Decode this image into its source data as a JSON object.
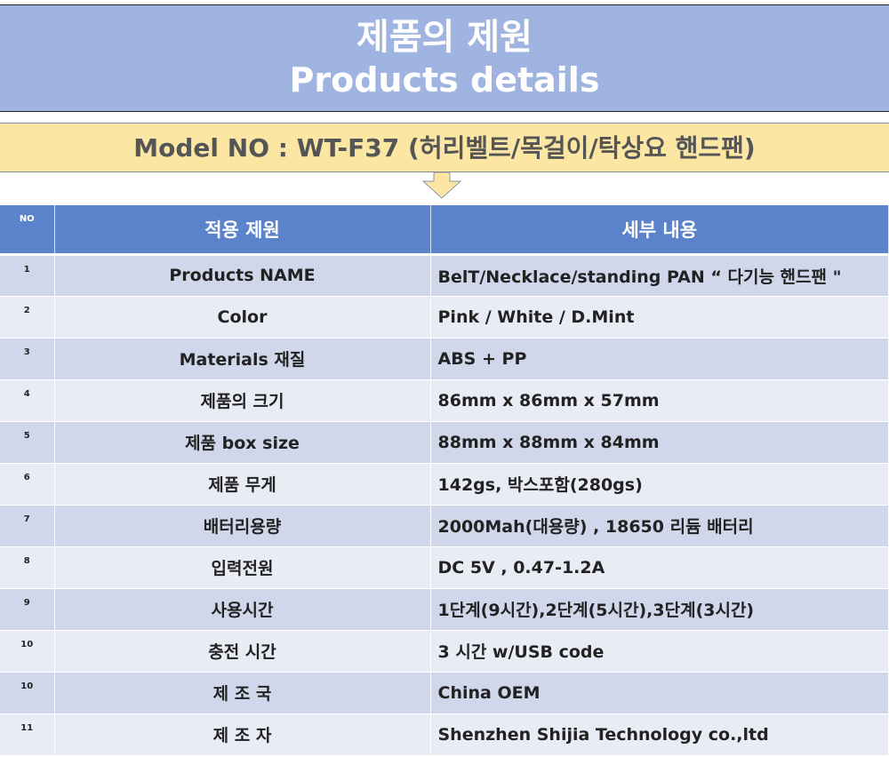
{
  "header": {
    "title_ko": "제품의 제원",
    "title_en": "Products details"
  },
  "model": {
    "text": "Model NO : WT-F37  (허리벨트/목걸이/탁상요 핸드팬)"
  },
  "table": {
    "columns": [
      "NO",
      "적용 제원",
      "세부 내용"
    ],
    "rows": [
      {
        "no": "1",
        "spec": "Products NAME",
        "value": "BelT/Necklace/standing PAN “ 다기능 핸드팬 \""
      },
      {
        "no": "2",
        "spec": "Color",
        "value": "Pink / White / D.Mint"
      },
      {
        "no": "3",
        "spec": "Materials 재질",
        "value": "ABS + PP"
      },
      {
        "no": "4",
        "spec": "제품의 크기",
        "value": "86mm x 86mm x 57mm"
      },
      {
        "no": "5",
        "spec": "제품 box size",
        "value": "88mm x 88mm x 84mm"
      },
      {
        "no": "6",
        "spec": "제품 무게",
        "value": "142gs, 박스포함(280gs)"
      },
      {
        "no": "7",
        "spec": "배터리용량",
        "value": "2000Mah(대용량) , 18650 리듐 배터리"
      },
      {
        "no": "8",
        "spec": "입력전원",
        "value": "DC 5V , 0.47-1.2A"
      },
      {
        "no": "9",
        "spec": "사용시간",
        "value": "1단계(9시간),2단계(5시간),3단계(3시간)"
      },
      {
        "no": "10",
        "spec": "충전 시간",
        "value": "3 시간  w/USB code"
      },
      {
        "no": "10",
        "spec": "제 조 국",
        "value": "China OEM"
      },
      {
        "no": "11",
        "spec": "제 조 자",
        "value": "Shenzhen Shijia Technology co.,ltd"
      }
    ]
  }
}
